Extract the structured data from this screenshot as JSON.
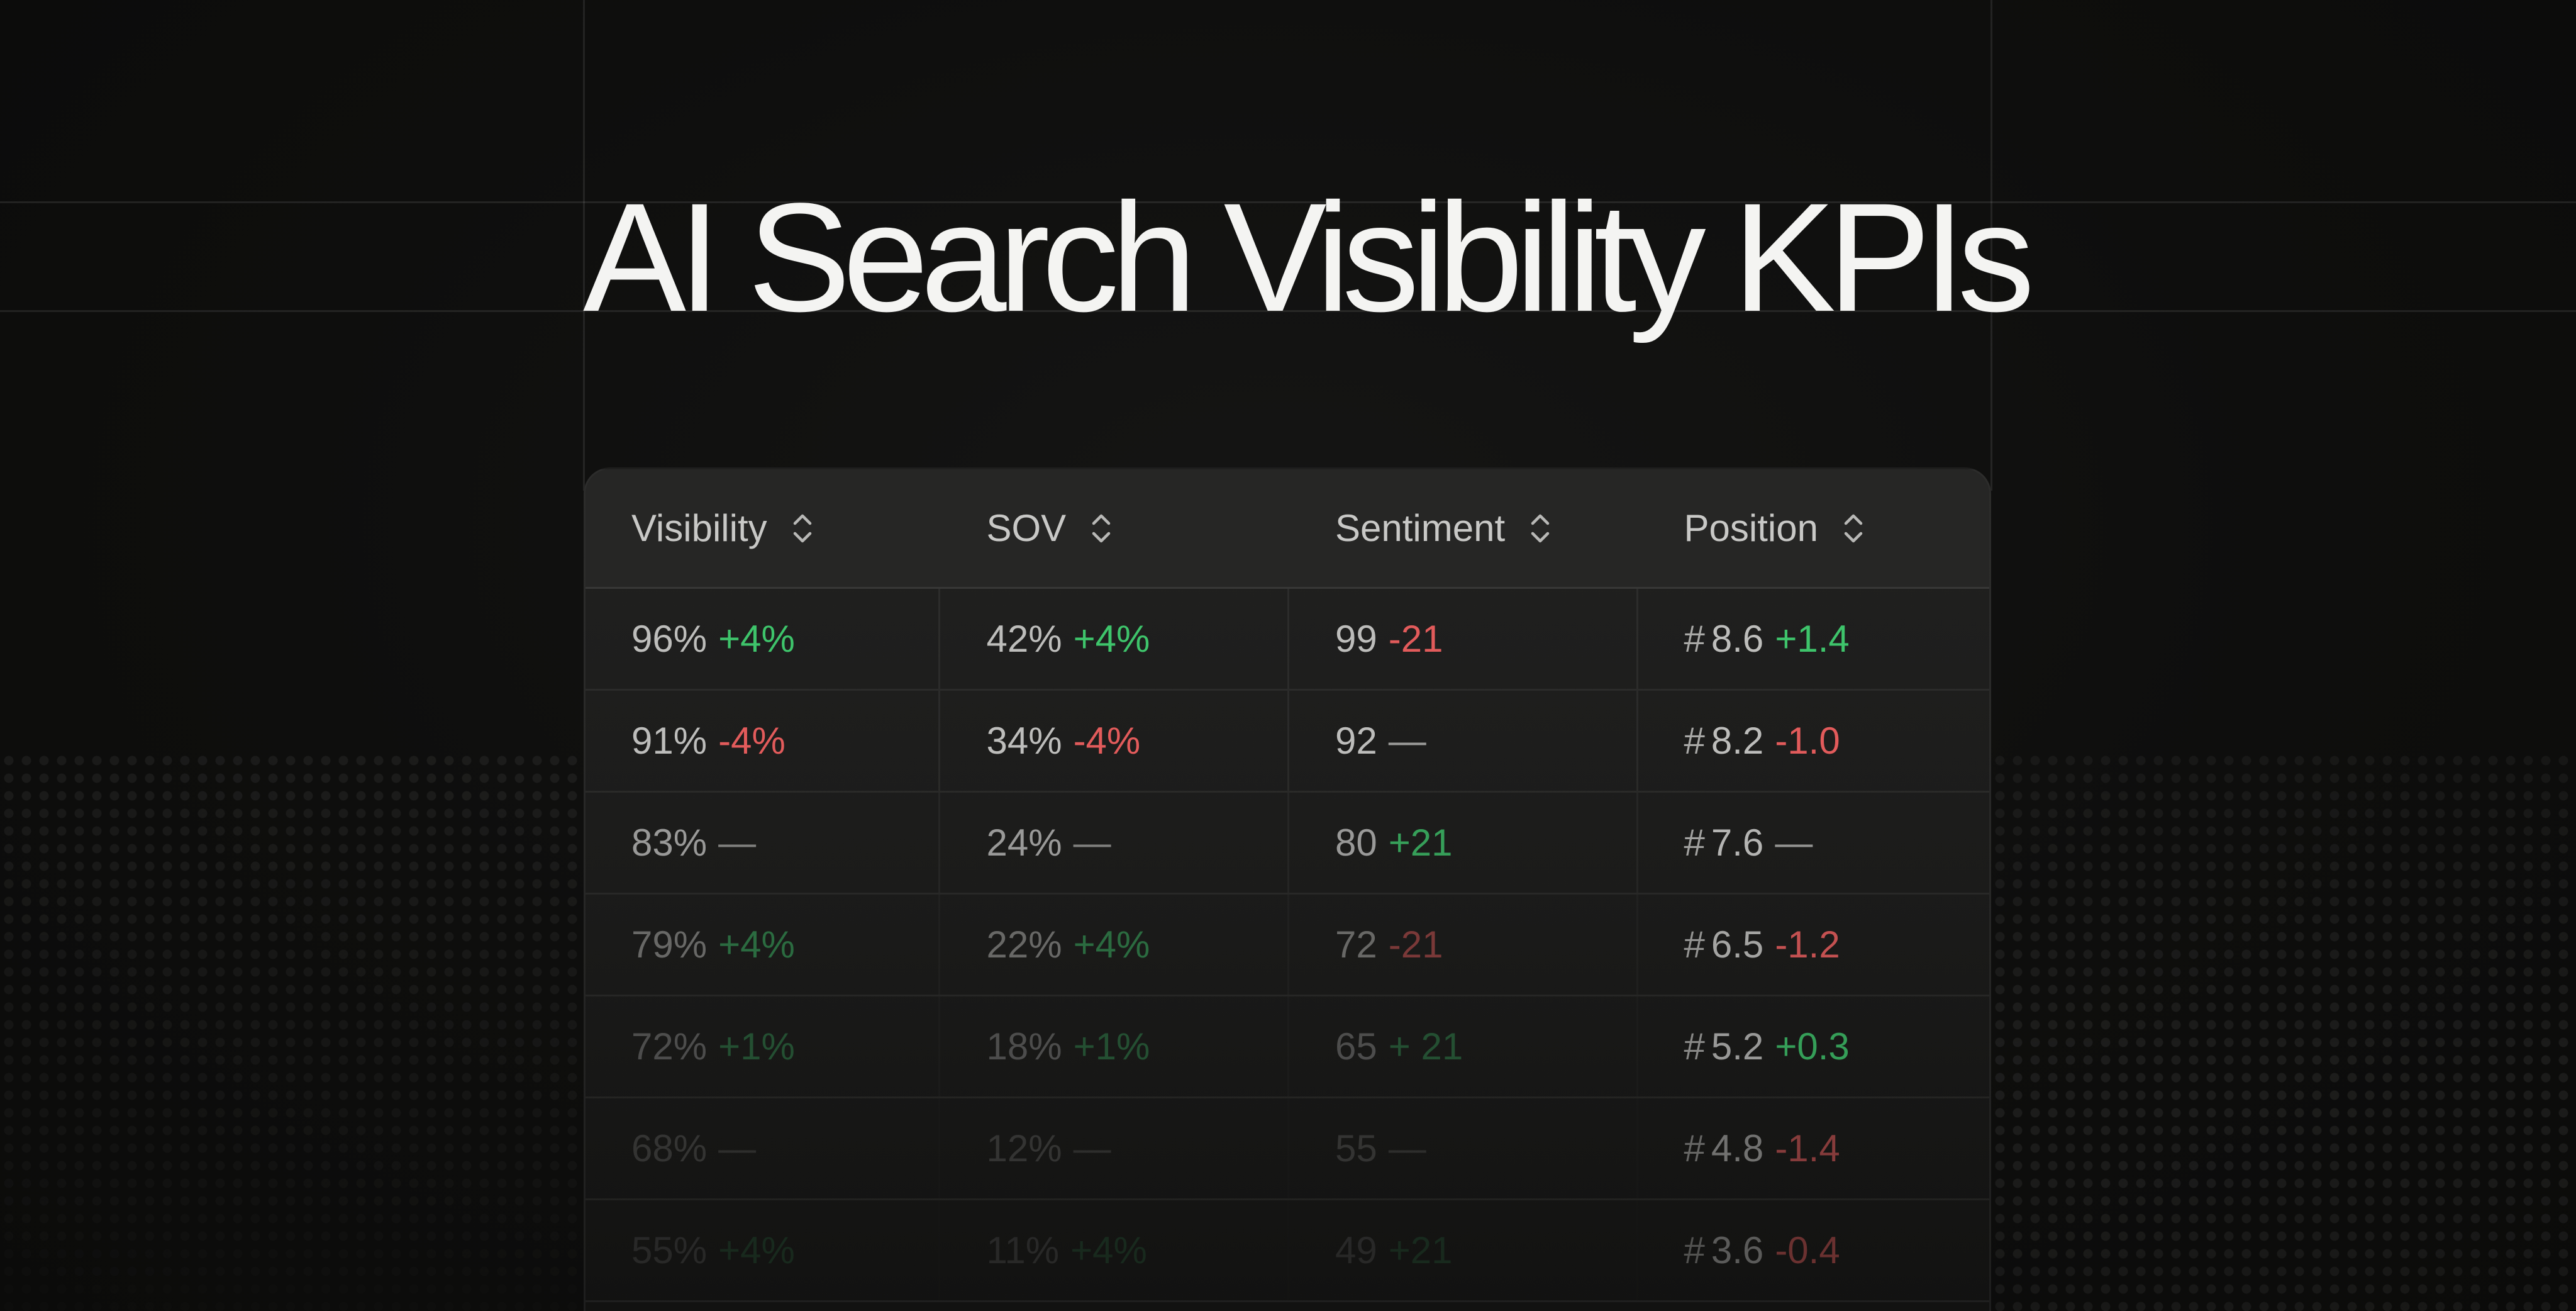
{
  "title": "AI Search Visibility KPIs",
  "table": {
    "columns": [
      {
        "label": "Visibility",
        "icon": "sort-icon"
      },
      {
        "label": "SOV",
        "icon": "sort-icon"
      },
      {
        "label": "Sentiment",
        "icon": "sort-icon"
      },
      {
        "label": "Position",
        "icon": "sort-icon"
      }
    ],
    "rows": [
      {
        "visibility": {
          "value": "96%",
          "delta": "+4%",
          "trend": "up"
        },
        "sov": {
          "value": "42%",
          "delta": "+4%",
          "trend": "up"
        },
        "sentiment": {
          "value": "99",
          "delta": "-21",
          "trend": "down"
        },
        "position": {
          "hash": "#",
          "value": "8.6",
          "delta": "+1.4",
          "trend": "up"
        }
      },
      {
        "visibility": {
          "value": "91%",
          "delta": "-4%",
          "trend": "down"
        },
        "sov": {
          "value": "34%",
          "delta": "-4%",
          "trend": "down"
        },
        "sentiment": {
          "value": "92",
          "delta": "—",
          "trend": "flat"
        },
        "position": {
          "hash": "#",
          "value": "8.2",
          "delta": "-1.0",
          "trend": "down"
        }
      },
      {
        "visibility": {
          "value": "83%",
          "delta": "—",
          "trend": "flat"
        },
        "sov": {
          "value": "24%",
          "delta": "—",
          "trend": "flat"
        },
        "sentiment": {
          "value": "80",
          "delta": "+21",
          "trend": "up"
        },
        "position": {
          "hash": "#",
          "value": "7.6",
          "delta": "—",
          "trend": "flat"
        }
      },
      {
        "visibility": {
          "value": "79%",
          "delta": "+4%",
          "trend": "up"
        },
        "sov": {
          "value": "22%",
          "delta": "+4%",
          "trend": "up"
        },
        "sentiment": {
          "value": "72",
          "delta": "-21",
          "trend": "down"
        },
        "position": {
          "hash": "#",
          "value": "6.5",
          "delta": "-1.2",
          "trend": "down"
        }
      },
      {
        "visibility": {
          "value": "72%",
          "delta": "+1%",
          "trend": "up"
        },
        "sov": {
          "value": "18%",
          "delta": "+1%",
          "trend": "up"
        },
        "sentiment": {
          "value": "65",
          "delta": "+ 21",
          "trend": "up"
        },
        "position": {
          "hash": "#",
          "value": "5.2",
          "delta": "+0.3",
          "trend": "up"
        }
      },
      {
        "visibility": {
          "value": "68%",
          "delta": "—",
          "trend": "flat"
        },
        "sov": {
          "value": "12%",
          "delta": "—",
          "trend": "flat"
        },
        "sentiment": {
          "value": "55",
          "delta": "—",
          "trend": "flat"
        },
        "position": {
          "hash": "#",
          "value": "4.8",
          "delta": "-1.4",
          "trend": "down"
        }
      },
      {
        "visibility": {
          "value": "55%",
          "delta": "+4%",
          "trend": "up"
        },
        "sov": {
          "value": "11%",
          "delta": "+4%",
          "trend": "up"
        },
        "sentiment": {
          "value": "49",
          "delta": "+21",
          "trend": "up"
        },
        "position": {
          "hash": "#",
          "value": "3.6",
          "delta": "-0.4",
          "trend": "down"
        }
      }
    ]
  }
}
